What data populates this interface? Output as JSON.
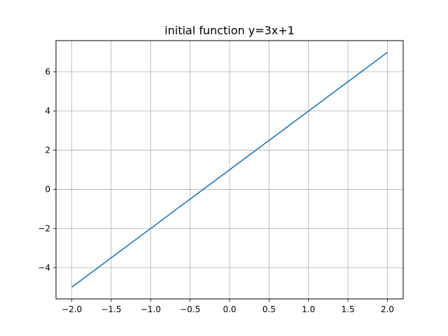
{
  "chart_data": {
    "type": "line",
    "title": "initial function y=3x+1",
    "xlabel": "",
    "ylabel": "",
    "xlim": [
      -2.2,
      2.2
    ],
    "ylim": [
      -5.6,
      7.6
    ],
    "grid": true,
    "xticks": [
      -2.0,
      -1.5,
      -1.0,
      -0.5,
      0.0,
      0.5,
      1.0,
      1.5,
      2.0
    ],
    "xtick_labels": [
      "−2.0",
      "−1.5",
      "−1.0",
      "−0.5",
      "0.0",
      "0.5",
      "1.0",
      "1.5",
      "2.0"
    ],
    "yticks": [
      -4,
      -2,
      0,
      2,
      4,
      6
    ],
    "ytick_labels": [
      "−4",
      "−2",
      "0",
      "2",
      "4",
      "6"
    ],
    "series": [
      {
        "color": "#1f77b4",
        "x": [
          -2.0,
          2.0
        ],
        "y": [
          -5,
          7
        ]
      }
    ]
  }
}
